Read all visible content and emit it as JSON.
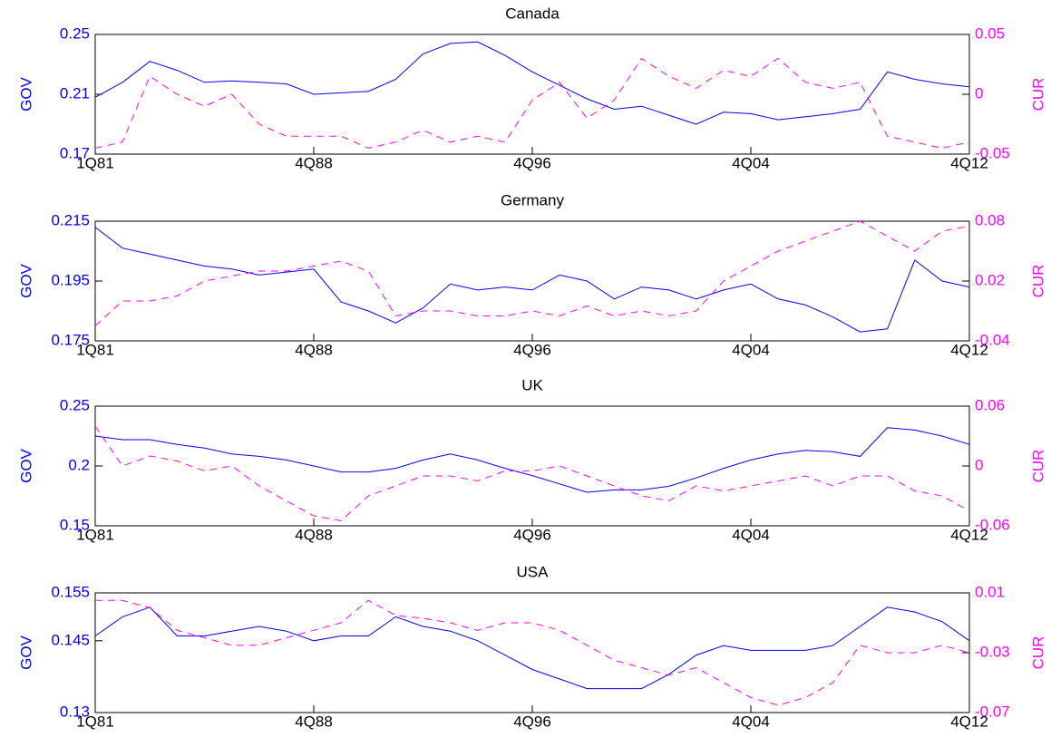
{
  "chart_data": [
    {
      "type": "line",
      "title": "Canada",
      "ylabel": "GOV",
      "y2label": "CUR",
      "categories": [
        "1Q81",
        null,
        null,
        null,
        null,
        null,
        null,
        null,
        "4Q88",
        null,
        null,
        null,
        null,
        null,
        null,
        null,
        "4Q96",
        null,
        null,
        null,
        null,
        null,
        null,
        null,
        "4Q04",
        null,
        null,
        null,
        null,
        null,
        null,
        null,
        "4Q12"
      ],
      "ylim": [
        0.17,
        0.25
      ],
      "yticks": [
        0.17,
        0.21,
        0.25
      ],
      "y2lim": [
        -0.05,
        0.05
      ],
      "y2ticks": [
        -0.05,
        0,
        0.05
      ],
      "series": [
        {
          "name": "GOV",
          "color": "#0000ff",
          "values": [
            0.208,
            0.218,
            0.232,
            0.226,
            0.218,
            0.219,
            0.218,
            0.217,
            0.21,
            0.211,
            0.212,
            0.22,
            0.237,
            0.244,
            0.245,
            0.236,
            0.225,
            0.216,
            0.207,
            0.2,
            0.202,
            0.196,
            0.19,
            0.198,
            0.197,
            0.193,
            0.195,
            0.197,
            0.2,
            0.225,
            0.22,
            0.217,
            0.215
          ]
        },
        {
          "name": "CUR",
          "color": "#ff00ff",
          "axis": "y2",
          "values": [
            -0.045,
            -0.04,
            0.015,
            0.0,
            -0.01,
            0.0,
            -0.025,
            -0.035,
            -0.035,
            -0.035,
            -0.045,
            -0.04,
            -0.03,
            -0.04,
            -0.035,
            -0.04,
            -0.005,
            0.01,
            -0.02,
            -0.005,
            0.03,
            0.015,
            0.005,
            0.02,
            0.015,
            0.03,
            0.01,
            0.005,
            0.01,
            -0.035,
            -0.04,
            -0.045,
            -0.04
          ]
        }
      ]
    },
    {
      "type": "line",
      "title": "Germany",
      "ylabel": "GOV",
      "y2label": "CUR",
      "categories": [
        "1Q81",
        null,
        null,
        null,
        null,
        null,
        null,
        null,
        "4Q88",
        null,
        null,
        null,
        null,
        null,
        null,
        null,
        "4Q96",
        null,
        null,
        null,
        null,
        null,
        null,
        null,
        "4Q04",
        null,
        null,
        null,
        null,
        null,
        null,
        null,
        "4Q12"
      ],
      "ylim": [
        0.175,
        0.215
      ],
      "yticks": [
        0.175,
        0.195,
        0.215
      ],
      "y2lim": [
        -0.04,
        0.08
      ],
      "y2ticks": [
        -0.04,
        0.02,
        0.08
      ],
      "series": [
        {
          "name": "GOV",
          "color": "#0000ff",
          "values": [
            0.213,
            0.206,
            0.204,
            0.202,
            0.2,
            0.199,
            0.197,
            0.198,
            0.199,
            0.188,
            0.185,
            0.181,
            0.186,
            0.194,
            0.192,
            0.193,
            0.192,
            0.197,
            0.195,
            0.189,
            0.193,
            0.192,
            0.189,
            0.192,
            0.194,
            0.189,
            0.187,
            0.183,
            0.178,
            0.179,
            0.202,
            0.195,
            0.193
          ]
        },
        {
          "name": "CUR",
          "color": "#ff00ff",
          "axis": "y2",
          "values": [
            -0.025,
            0.0,
            0.0,
            0.005,
            0.02,
            0.025,
            0.03,
            0.03,
            0.035,
            0.04,
            0.03,
            -0.015,
            -0.01,
            -0.01,
            -0.015,
            -0.015,
            -0.01,
            -0.015,
            -0.005,
            -0.015,
            -0.01,
            -0.015,
            -0.01,
            0.02,
            0.035,
            0.05,
            0.06,
            0.07,
            0.08,
            0.065,
            0.05,
            0.07,
            0.075
          ]
        }
      ]
    },
    {
      "type": "line",
      "title": "UK",
      "ylabel": "GOV",
      "y2label": "CUR",
      "categories": [
        "1Q81",
        null,
        null,
        null,
        null,
        null,
        null,
        null,
        "4Q88",
        null,
        null,
        null,
        null,
        null,
        null,
        null,
        "4Q96",
        null,
        null,
        null,
        null,
        null,
        null,
        null,
        "4Q04",
        null,
        null,
        null,
        null,
        null,
        null,
        null,
        "4Q12"
      ],
      "ylim": [
        0.15,
        0.25
      ],
      "yticks": [
        0.15,
        0.2,
        0.25
      ],
      "y2lim": [
        -0.06,
        0.06
      ],
      "y2ticks": [
        -0.06,
        0,
        0.06
      ],
      "series": [
        {
          "name": "GOV",
          "color": "#0000ff",
          "values": [
            0.225,
            0.222,
            0.222,
            0.218,
            0.215,
            0.21,
            0.208,
            0.205,
            0.2,
            0.195,
            0.195,
            0.198,
            0.205,
            0.21,
            0.205,
            0.198,
            0.192,
            0.185,
            0.178,
            0.18,
            0.18,
            0.183,
            0.19,
            0.198,
            0.205,
            0.21,
            0.213,
            0.212,
            0.208,
            0.232,
            0.23,
            0.225,
            0.218
          ]
        },
        {
          "name": "CUR",
          "color": "#ff00ff",
          "axis": "y2",
          "values": [
            0.04,
            0.0,
            0.01,
            0.005,
            -0.005,
            0.0,
            -0.02,
            -0.035,
            -0.05,
            -0.055,
            -0.03,
            -0.02,
            -0.01,
            -0.01,
            -0.015,
            -0.005,
            -0.005,
            0.0,
            -0.01,
            -0.02,
            -0.03,
            -0.035,
            -0.02,
            -0.025,
            -0.02,
            -0.015,
            -0.01,
            -0.02,
            -0.01,
            -0.01,
            -0.025,
            -0.03,
            -0.045
          ]
        }
      ]
    },
    {
      "type": "line",
      "title": "USA",
      "ylabel": "GOV",
      "y2label": "CUR",
      "categories": [
        "1Q81",
        null,
        null,
        null,
        null,
        null,
        null,
        null,
        "4Q88",
        null,
        null,
        null,
        null,
        null,
        null,
        null,
        "4Q96",
        null,
        null,
        null,
        null,
        null,
        null,
        null,
        "4Q04",
        null,
        null,
        null,
        null,
        null,
        null,
        null,
        "4Q12"
      ],
      "ylim": [
        0.13,
        0.155
      ],
      "yticks": [
        0.13,
        0.145,
        0.155
      ],
      "y2lim": [
        -0.07,
        0.01
      ],
      "y2ticks": [
        -0.07,
        -0.03,
        0.01
      ],
      "series": [
        {
          "name": "GOV",
          "color": "#0000ff",
          "values": [
            0.146,
            0.15,
            0.152,
            0.146,
            0.146,
            0.147,
            0.148,
            0.147,
            0.145,
            0.146,
            0.146,
            0.15,
            0.148,
            0.147,
            0.145,
            0.142,
            0.139,
            0.137,
            0.135,
            0.135,
            0.135,
            0.138,
            0.142,
            0.144,
            0.143,
            0.143,
            0.143,
            0.144,
            0.148,
            0.152,
            0.151,
            0.149,
            0.145
          ]
        },
        {
          "name": "CUR",
          "color": "#ff00ff",
          "axis": "y2",
          "values": [
            0.005,
            0.005,
            0.0,
            -0.015,
            -0.02,
            -0.025,
            -0.025,
            -0.02,
            -0.015,
            -0.01,
            0.005,
            -0.005,
            -0.007,
            -0.01,
            -0.015,
            -0.01,
            -0.01,
            -0.015,
            -0.025,
            -0.035,
            -0.04,
            -0.045,
            -0.04,
            -0.05,
            -0.06,
            -0.065,
            -0.06,
            -0.05,
            -0.025,
            -0.03,
            -0.03,
            -0.025,
            -0.03
          ]
        }
      ]
    }
  ]
}
